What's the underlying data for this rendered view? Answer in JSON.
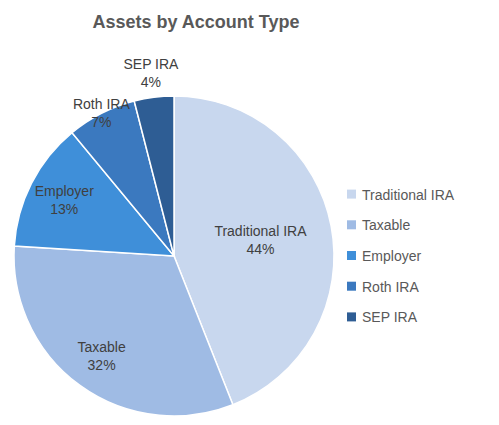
{
  "chart_data": {
    "type": "pie",
    "title": "Assets by Account Type",
    "categories": [
      "Traditional IRA",
      "Taxable",
      "Employer",
      "Roth IRA",
      "SEP IRA"
    ],
    "values": [
      44,
      32,
      13,
      7,
      4
    ],
    "value_labels": [
      "44%",
      "32%",
      "13%",
      "7%",
      "4%"
    ],
    "colors": [
      "#c8d7ee",
      "#9fbbe4",
      "#3f8fd9",
      "#3b79bf",
      "#2e5d94"
    ],
    "data_labels": true,
    "legend": "right"
  }
}
